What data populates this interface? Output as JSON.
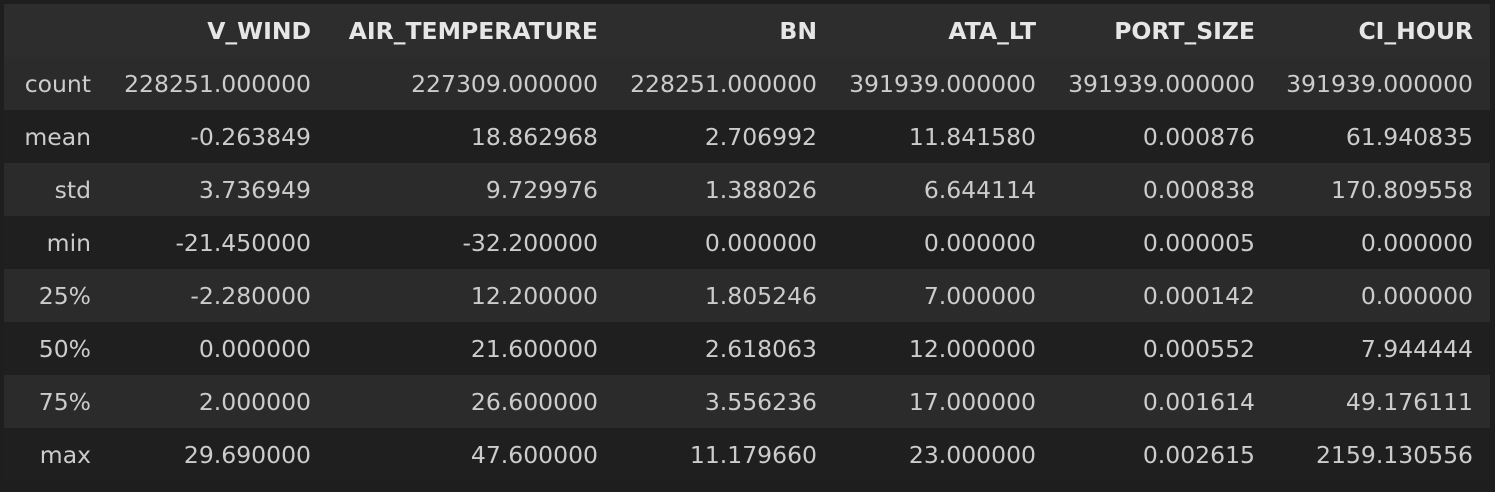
{
  "table": {
    "index_header": "",
    "columns": [
      "V_WIND",
      "AIR_TEMPERATURE",
      "BN",
      "ATA_LT",
      "PORT_SIZE",
      "CI_HOUR"
    ],
    "rows": [
      {
        "label": "count",
        "values": [
          "228251.000000",
          "227309.000000",
          "228251.000000",
          "391939.000000",
          "391939.000000",
          "391939.000000"
        ]
      },
      {
        "label": "mean",
        "values": [
          "-0.263849",
          "18.862968",
          "2.706992",
          "11.841580",
          "0.000876",
          "61.940835"
        ]
      },
      {
        "label": "std",
        "values": [
          "3.736949",
          "9.729976",
          "1.388026",
          "6.644114",
          "0.000838",
          "170.809558"
        ]
      },
      {
        "label": "min",
        "values": [
          "-21.450000",
          "-32.200000",
          "0.000000",
          "0.000000",
          "0.000005",
          "0.000000"
        ]
      },
      {
        "label": "25%",
        "values": [
          "-2.280000",
          "12.200000",
          "1.805246",
          "7.000000",
          "0.000142",
          "0.000000"
        ]
      },
      {
        "label": "50%",
        "values": [
          "0.000000",
          "21.600000",
          "2.618063",
          "12.000000",
          "0.000552",
          "7.944444"
        ]
      },
      {
        "label": "75%",
        "values": [
          "2.000000",
          "26.600000",
          "3.556236",
          "17.000000",
          "0.001614",
          "49.176111"
        ]
      },
      {
        "label": "max",
        "values": [
          "29.690000",
          "47.600000",
          "11.179660",
          "23.000000",
          "0.002615",
          "2159.130556"
        ]
      }
    ]
  },
  "colors": {
    "background": "#1e1e1e",
    "header_bg": "#2d2d2d",
    "row_odd_bg": "#2b2b2b",
    "row_even_bg": "#1f1f1f",
    "text": "#cccccc"
  }
}
